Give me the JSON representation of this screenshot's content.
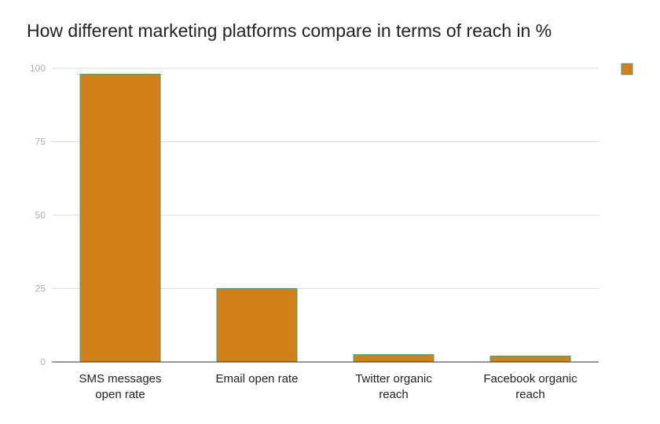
{
  "colors": {
    "bar_fill": "#d0811a",
    "bar_stroke": "#3f9a8a",
    "legend_fill": "#d0811a",
    "legend_stroke": "#3f9a8a",
    "grid": "#dddddd",
    "axis": "#333333",
    "title": "#222222",
    "tick_text": "#b0b0b0",
    "category_text": "#222222"
  },
  "chart_data": {
    "type": "bar",
    "title": "How different marketing platforms compare in terms of reach in %",
    "categories": [
      [
        "SMS messages",
        "open rate"
      ],
      [
        "Email open rate"
      ],
      [
        "Twitter organic",
        "reach"
      ],
      [
        "Facebook organic",
        "reach"
      ]
    ],
    "values": [
      98,
      25,
      2.5,
      2
    ],
    "ylim": [
      0,
      100
    ],
    "yticks": [
      0,
      25,
      50,
      75,
      100
    ],
    "grid": true,
    "legend": {
      "placement": "top-right",
      "entries": [
        ""
      ]
    },
    "xlabel": "",
    "ylabel": ""
  }
}
